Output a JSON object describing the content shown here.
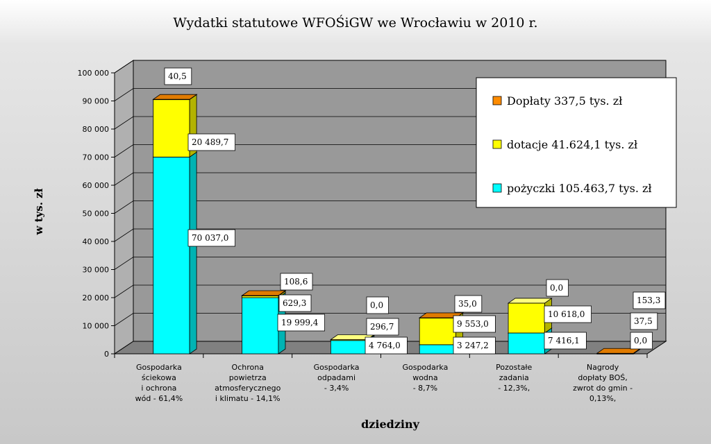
{
  "chart_data": {
    "type": "bar",
    "stacked": true,
    "three_d": true,
    "title": "Wydatki statutowe WFOŚiGW we Wrocławiu w 2010 r.",
    "xlabel": "dziedziny",
    "ylabel": "w tys. zł",
    "ylim": [
      0,
      100000
    ],
    "yticks": [
      0,
      10000,
      20000,
      30000,
      40000,
      50000,
      60000,
      70000,
      80000,
      90000,
      100000
    ],
    "ytick_labels": [
      "0",
      "10 000",
      "20 000",
      "30 000",
      "40 000",
      "50 000",
      "60 000",
      "70 000",
      "80 000",
      "90 000",
      "100 000"
    ],
    "grid": true,
    "legend_position": "top-right",
    "categories": [
      [
        "Gospodarka",
        "ściekowa",
        "i ochrona",
        "wód - 61,4%"
      ],
      [
        "Ochrona",
        "powietrza",
        "atmosferycznego",
        "i klimatu - 14,1%"
      ],
      [
        "Gospodarka",
        "odpadami",
        "- 3,4%"
      ],
      [
        "Gospodarka",
        "wodna",
        "- 8,7%"
      ],
      [
        "Pozostałe",
        "zadania",
        "- 12,3%,"
      ],
      [
        "Nagrody",
        "dopłaty BOŚ,",
        "zwrot do gmin -",
        "0,13%,"
      ]
    ],
    "series": [
      {
        "name": "pożyczki 105.463,7 tys. zł",
        "color": "#00ffff",
        "side_color": "#00b3b3",
        "top_color": "#66ffff",
        "values": [
          70037.0,
          19999.4,
          4764.0,
          3247.2,
          7416.1,
          0.0
        ],
        "labels": [
          "70 037,0",
          "19 999,4",
          "4 764,0",
          "3 247,2",
          "7 416,1",
          "0,0"
        ]
      },
      {
        "name": "dotacje 41.624,1 tys. zł",
        "color": "#ffff00",
        "side_color": "#b3b300",
        "top_color": "#ffff80",
        "values": [
          20489.7,
          629.3,
          296.7,
          9553.0,
          10618.0,
          37.5
        ],
        "labels": [
          "20 489,7",
          "629,3",
          "296,7",
          "9 553,0",
          "10 618,0",
          "37,5"
        ]
      },
      {
        "name": "Dopłaty 337,5 tys. zł",
        "color": "#ff8c00",
        "side_color": "#b36200",
        "top_color": "#e07b00",
        "values": [
          40.5,
          108.6,
          0.0,
          35.0,
          0.0,
          153.3
        ],
        "labels": [
          "40,5",
          "108,6",
          "0,0",
          "35,0",
          "0,0",
          "153,3"
        ]
      }
    ],
    "legend_order": [
      2,
      1,
      0
    ],
    "colors": {
      "wall": "#999999",
      "floor": "#808080",
      "gridline": "#000000"
    }
  }
}
